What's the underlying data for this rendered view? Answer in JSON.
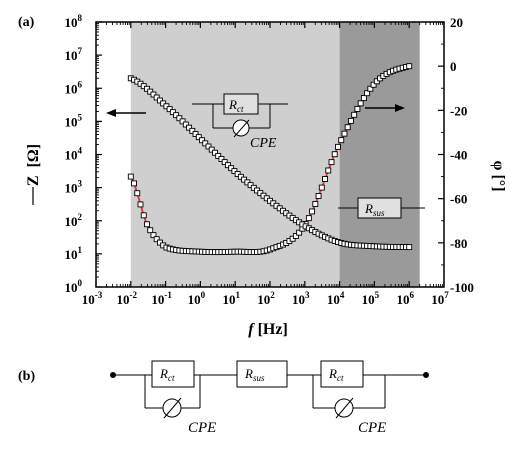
{
  "panels": {
    "a": "(a)",
    "b": "(b)"
  },
  "chart_data": {
    "type": "scatter",
    "x_axis": {
      "label_italic": "f",
      "label_rest": " [Hz]",
      "scale": "log",
      "range": [
        0.001,
        10000000
      ],
      "tick_mantissa": "10",
      "tick_exponents": [
        "-3",
        "-2",
        "-1",
        "0",
        "1",
        "2",
        "3",
        "4",
        "5",
        "6",
        "7"
      ]
    },
    "y_left": {
      "label": "|Z| [Ω]",
      "label_text": "[Ω]",
      "label_symbol": "Z",
      "scale": "log",
      "range": [
        1,
        100000000
      ],
      "tick_mantissa": "10",
      "tick_exponents": [
        "0",
        "1",
        "2",
        "3",
        "4",
        "5",
        "6",
        "7",
        "8"
      ]
    },
    "y_right": {
      "label": "φ [°]",
      "range": [
        -100,
        20
      ],
      "ticks": [
        "20",
        "0",
        "-20",
        "-40",
        "-60",
        "-80",
        "-100"
      ]
    },
    "shaded_regions": [
      {
        "from": 0.01,
        "to": 10000,
        "color": "#cfcfcf"
      },
      {
        "from": 10000,
        "to": 2000000,
        "color": "#9a9a9a"
      }
    ],
    "series": [
      {
        "measure": "impedance magnitude",
        "axis": "left",
        "marker": "open-square",
        "fit_color": "#e8322b",
        "x": [
          0.01,
          0.1,
          1,
          10,
          100,
          1000,
          10000,
          100000,
          1000000
        ],
        "y": [
          2000000,
          300000,
          30000,
          3000,
          400,
          70,
          22,
          17,
          16
        ]
      },
      {
        "measure": "phase",
        "axis": "right",
        "marker": "open-square",
        "fit_color": "#e8322b",
        "x": [
          0.01,
          0.03,
          0.1,
          1,
          10,
          100,
          1000,
          10000,
          100000,
          1000000
        ],
        "y": [
          -50,
          -72,
          -82,
          -84,
          -84,
          -83,
          -72,
          -35,
          -8,
          0
        ]
      }
    ],
    "insets": {
      "rct_cpe": {
        "r_label": "R",
        "r_sub": "ct",
        "cpe_label": "CPE"
      },
      "rsus": {
        "r_label": "R",
        "r_sub": "sus"
      }
    },
    "arrows": [
      "left",
      "right"
    ]
  },
  "circuit": {
    "elements": [
      {
        "kind": "rct",
        "label": "R",
        "sub": "ct",
        "cpe_label": "CPE"
      },
      {
        "kind": "rsus",
        "label": "R",
        "sub": "sus"
      },
      {
        "kind": "rct",
        "label": "R",
        "sub": "ct",
        "cpe_label": "CPE"
      }
    ]
  }
}
